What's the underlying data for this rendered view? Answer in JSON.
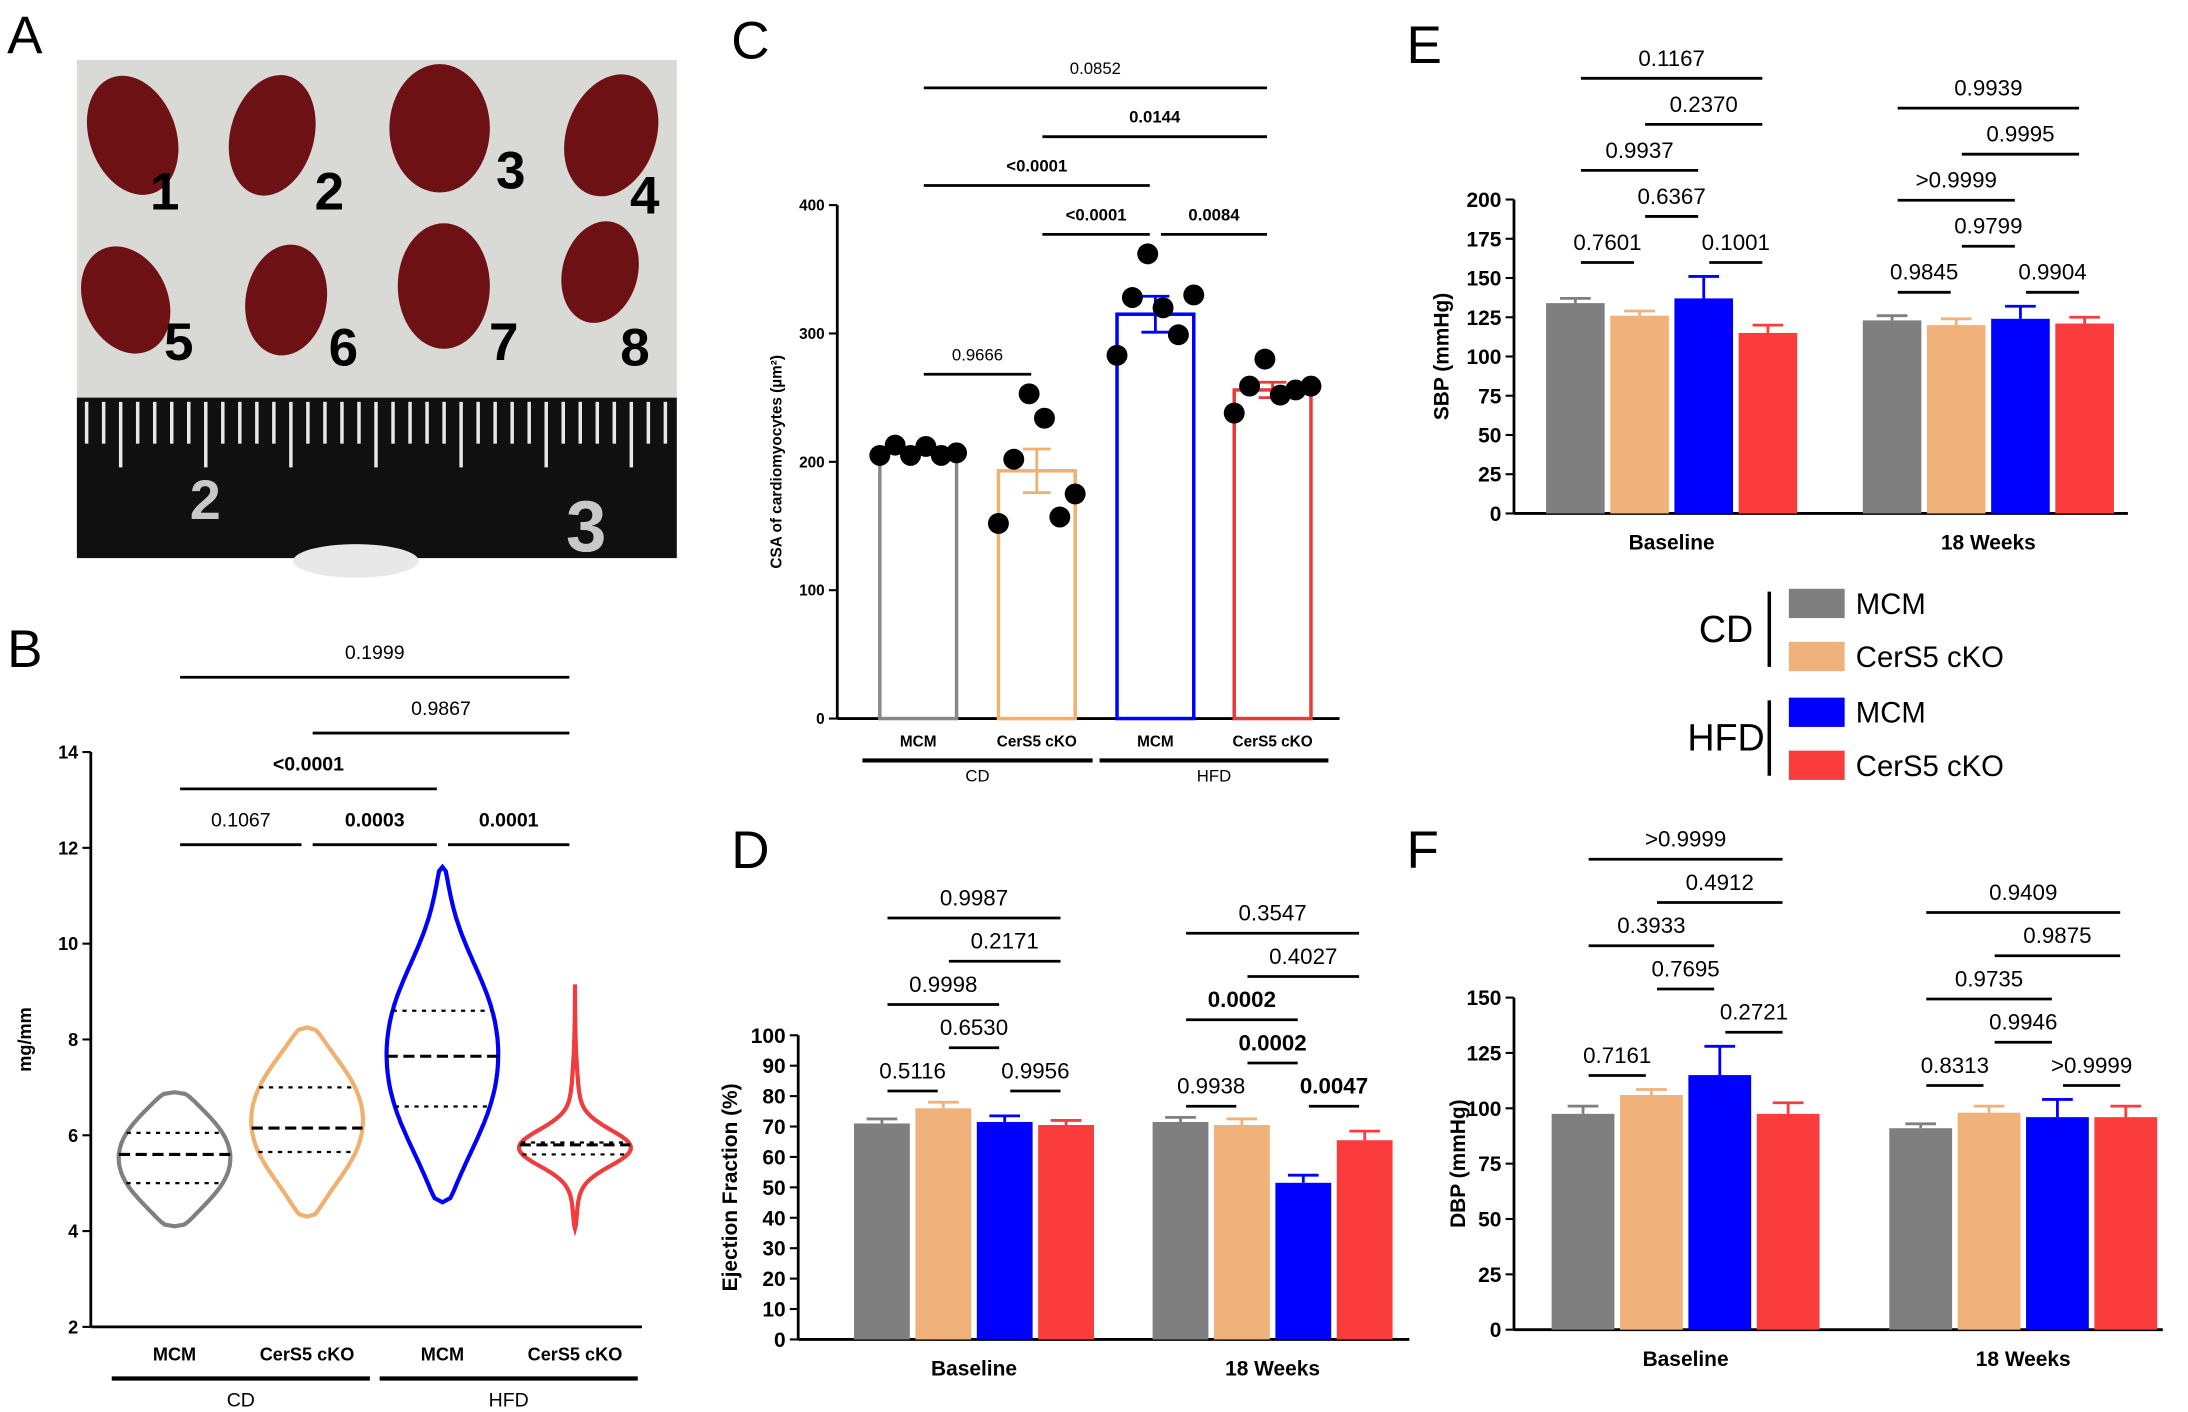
{
  "panel_labels": [
    "A",
    "B",
    "C",
    "D",
    "E",
    "F"
  ],
  "photo": {
    "heart_labels": [
      "1",
      "2",
      "3",
      "4",
      "5",
      "6",
      "7",
      "8"
    ],
    "ruler_labels": [
      "2",
      "3"
    ]
  },
  "legend": {
    "groups": [
      {
        "name": "CD",
        "items": [
          {
            "name": "MCM",
            "color": "#7f7f7f"
          },
          {
            "name": "CerS5 cKO",
            "color": "#f0b27a"
          }
        ]
      },
      {
        "name": "HFD",
        "items": [
          {
            "name": "MCM",
            "color": "#0000ff"
          },
          {
            "name": "CerS5 cKO",
            "color": "#fa3c3c"
          }
        ]
      }
    ]
  },
  "chart_data": [
    {
      "type": "violin",
      "ylabel": "mg/mm",
      "categories": [
        "MCM",
        "CerS5 cKO",
        "MCM",
        "CerS5 cKO"
      ],
      "group_labels": [
        "CD",
        "HFD"
      ],
      "colors": [
        "#808080",
        "#f0b070",
        "#0000ff",
        "#f03c3c"
      ],
      "stats": [
        {
          "min": 4.1,
          "q1": 5.0,
          "median": 5.6,
          "q3": 6.05,
          "max": 6.9
        },
        {
          "min": 4.3,
          "q1": 5.65,
          "median": 6.15,
          "q3": 7.0,
          "max": 8.25
        },
        {
          "min": 4.6,
          "q1": 6.6,
          "median": 7.65,
          "q3": 8.6,
          "max": 11.6
        },
        {
          "min": 4.05,
          "q1": 5.6,
          "median": 5.8,
          "q3": 5.85,
          "max": 9.15
        }
      ],
      "ylim": [
        2,
        14
      ],
      "yticks": [
        2,
        4,
        6,
        8,
        10,
        12,
        14
      ],
      "brackets": [
        [
          {
            "label": "0.1067",
            "from": 0,
            "to": 1,
            "bold": false
          },
          {
            "label": "0.0003",
            "from": 1,
            "to": 2,
            "bold": true
          },
          {
            "label": "0.0001",
            "from": 2,
            "to": 3,
            "bold": true
          }
        ],
        [
          {
            "label": "<0.0001",
            "from": 0,
            "to": 2,
            "bold": true
          }
        ],
        [
          {
            "label": "0.9867",
            "from": 1,
            "to": 3,
            "bold": false
          }
        ],
        [
          {
            "label": "0.1999",
            "from": 0,
            "to": 3,
            "bold": false
          }
        ]
      ]
    },
    {
      "type": "bar_scatter",
      "ylabel": "CSA of cardiomyocytes (µm²)",
      "categories": [
        "MCM",
        "CerS5 cKO",
        "MCM",
        "CerS5 cKO"
      ],
      "group_labels": [
        "CD",
        "HFD"
      ],
      "colors": [
        "#888888",
        "#f0b070",
        "#0000ff",
        "#e83a3a"
      ],
      "values": [
        208,
        193,
        315,
        256
      ],
      "errors": [
        2,
        17,
        14,
        6
      ],
      "points": [
        [
          205,
          213,
          205,
          212,
          205,
          207
        ],
        [
          152,
          202,
          253,
          234,
          157,
          175
        ],
        [
          283,
          328,
          362,
          320,
          299,
          330
        ],
        [
          238,
          259,
          280,
          252,
          256,
          259
        ]
      ],
      "ylim": [
        0,
        400
      ],
      "yticks": [
        0,
        100,
        200,
        300,
        400
      ],
      "brackets": [
        [
          {
            "label": "0.9666",
            "from": 0,
            "to": 1,
            "bold": false
          }
        ],
        [
          {
            "label": "<0.0001",
            "from": 1,
            "to": 2,
            "bold": true
          },
          {
            "label": "0.0084",
            "from": 2,
            "to": 3,
            "bold": true
          }
        ],
        [
          {
            "label": "<0.0001",
            "from": 0,
            "to": 2,
            "bold": true
          }
        ],
        [
          {
            "label": "0.0144",
            "from": 1,
            "to": 3,
            "bold": true
          }
        ],
        [
          {
            "label": "0.0852",
            "from": 0,
            "to": 3,
            "bold": false
          }
        ]
      ]
    },
    {
      "type": "bar",
      "ylabel": "Ejection Fraction (%)",
      "categories": [
        "Baseline",
        "18 Weeks"
      ],
      "series": [
        {
          "color": "#7f7f7f",
          "values": [
            71,
            71.5
          ],
          "errors": [
            1.5,
            1.5
          ]
        },
        {
          "color": "#f0b27a",
          "values": [
            76,
            70.5
          ],
          "errors": [
            2,
            2
          ]
        },
        {
          "color": "#0000ff",
          "values": [
            71.5,
            51.5
          ],
          "errors": [
            2,
            2.5
          ]
        },
        {
          "color": "#fa3c3c",
          "values": [
            70.5,
            65.5
          ],
          "errors": [
            1.5,
            3
          ]
        }
      ],
      "ylim": [
        0,
        100
      ],
      "yticks": [
        0,
        10,
        20,
        30,
        40,
        50,
        60,
        70,
        80,
        90,
        100
      ],
      "brackets": [
        [
          [
            {
              "label": "0.5116",
              "from": 0,
              "to": 1,
              "bold": false
            },
            {
              "label": "0.9956",
              "from": 2,
              "to": 3,
              "bold": false
            }
          ],
          [
            {
              "label": "0.6530",
              "from": 1,
              "to": 2,
              "bold": false
            }
          ],
          [
            {
              "label": "0.9998",
              "from": 0,
              "to": 2,
              "bold": false
            }
          ],
          [
            {
              "label": "0.2171",
              "from": 1,
              "to": 3,
              "bold": false
            }
          ],
          [
            {
              "label": "0.9987",
              "from": 0,
              "to": 3,
              "bold": false
            }
          ]
        ],
        [
          [
            {
              "label": "0.9938",
              "from": 0,
              "to": 1,
              "bold": false
            },
            {
              "label": "0.0047",
              "from": 2,
              "to": 3,
              "bold": true
            }
          ],
          [
            {
              "label": "0.0002",
              "from": 1,
              "to": 2,
              "bold": true
            }
          ],
          [
            {
              "label": "0.0002",
              "from": 0,
              "to": 2,
              "bold": true
            }
          ],
          [
            {
              "label": "0.4027",
              "from": 1,
              "to": 3,
              "bold": false
            }
          ],
          [
            {
              "label": "0.3547",
              "from": 0,
              "to": 3,
              "bold": false
            }
          ]
        ]
      ]
    },
    {
      "type": "bar",
      "ylabel": "SBP (mmHg)",
      "categories": [
        "Baseline",
        "18 Weeks"
      ],
      "series": [
        {
          "color": "#7f7f7f",
          "values": [
            134,
            123
          ],
          "errors": [
            3,
            3
          ]
        },
        {
          "color": "#f0b27a",
          "values": [
            126,
            120
          ],
          "errors": [
            3,
            4
          ]
        },
        {
          "color": "#0000ff",
          "values": [
            137,
            124
          ],
          "errors": [
            14,
            8
          ]
        },
        {
          "color": "#fa3c3c",
          "values": [
            115,
            121
          ],
          "errors": [
            5,
            4
          ]
        }
      ],
      "ylim": [
        0,
        200
      ],
      "yticks": [
        0,
        25,
        50,
        75,
        100,
        125,
        150,
        175,
        200
      ],
      "brackets": [
        [
          [
            {
              "label": "0.7601",
              "from": 0,
              "to": 1,
              "bold": false
            },
            {
              "label": "0.1001",
              "from": 2,
              "to": 3,
              "bold": false
            }
          ],
          [
            {
              "label": "0.6367",
              "from": 1,
              "to": 2,
              "bold": false
            }
          ],
          [
            {
              "label": "0.9937",
              "from": 0,
              "to": 2,
              "bold": false
            }
          ],
          [
            {
              "label": "0.2370",
              "from": 1,
              "to": 3,
              "bold": false
            }
          ],
          [
            {
              "label": "0.1167",
              "from": 0,
              "to": 3,
              "bold": false
            }
          ]
        ],
        [
          [
            {
              "label": "0.9845",
              "from": 0,
              "to": 1,
              "bold": false
            },
            {
              "label": "0.9904",
              "from": 2,
              "to": 3,
              "bold": false
            }
          ],
          [
            {
              "label": "0.9799",
              "from": 1,
              "to": 2,
              "bold": false
            }
          ],
          [
            {
              "label": ">0.9999",
              "from": 0,
              "to": 2,
              "bold": false
            }
          ],
          [
            {
              "label": "0.9995",
              "from": 1,
              "to": 3,
              "bold": false
            }
          ],
          [
            {
              "label": "0.9939",
              "from": 0,
              "to": 3,
              "bold": false
            }
          ]
        ]
      ]
    },
    {
      "type": "bar",
      "ylabel": "DBP (mmHg)",
      "categories": [
        "Baseline",
        "18 Weeks"
      ],
      "series": [
        {
          "color": "#7f7f7f",
          "values": [
            97.5,
            91
          ],
          "errors": [
            3.5,
            2
          ]
        },
        {
          "color": "#f0b27a",
          "values": [
            106,
            98
          ],
          "errors": [
            2.5,
            3
          ]
        },
        {
          "color": "#0000ff",
          "values": [
            115,
            96
          ],
          "errors": [
            13,
            8
          ]
        },
        {
          "color": "#fa3c3c",
          "values": [
            97.5,
            96
          ],
          "errors": [
            5,
            5
          ]
        }
      ],
      "ylim": [
        0,
        150
      ],
      "yticks": [
        0,
        25,
        50,
        75,
        100,
        125,
        150
      ],
      "brackets": [
        [
          [
            {
              "label": "0.7161",
              "from": 0,
              "to": 1,
              "bold": false
            }
          ],
          [
            {
              "label": "0.2721",
              "from": 2,
              "to": 3,
              "bold": false
            }
          ],
          [
            {
              "label": "0.7695",
              "from": 1,
              "to": 2,
              "bold": false
            }
          ],
          [
            {
              "label": "0.3933",
              "from": 0,
              "to": 2,
              "bold": false
            }
          ],
          [
            {
              "label": "0.4912",
              "from": 1,
              "to": 3,
              "bold": false
            }
          ],
          [
            {
              "label": ">0.9999",
              "from": 0,
              "to": 3,
              "bold": false
            }
          ]
        ],
        [
          [
            {
              "label": "0.8313",
              "from": 0,
              "to": 1,
              "bold": false
            },
            {
              "label": ">0.9999",
              "from": 2,
              "to": 3,
              "bold": false
            }
          ],
          [
            {
              "label": "0.9946",
              "from": 1,
              "to": 2,
              "bold": false
            }
          ],
          [
            {
              "label": "0.9735",
              "from": 0,
              "to": 2,
              "bold": false
            }
          ],
          [
            {
              "label": "0.9875",
              "from": 1,
              "to": 3,
              "bold": false
            }
          ],
          [
            {
              "label": "0.9409",
              "from": 0,
              "to": 3,
              "bold": false
            }
          ]
        ]
      ]
    }
  ]
}
